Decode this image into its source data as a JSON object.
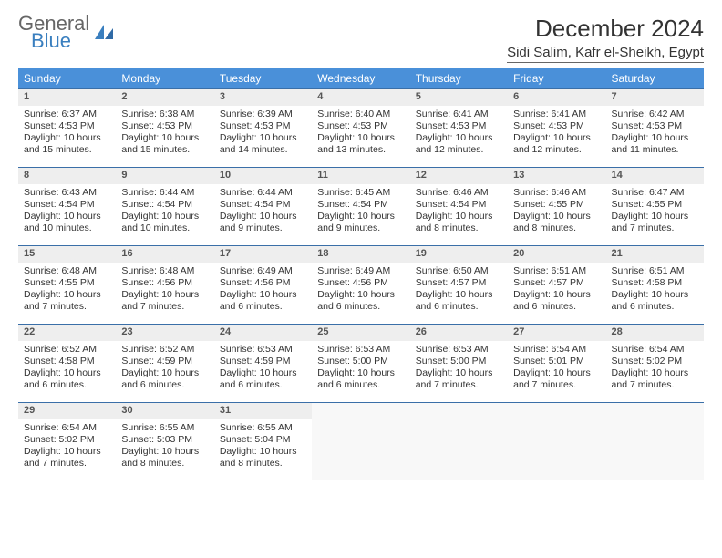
{
  "brand": {
    "line1": "General",
    "line2": "Blue"
  },
  "title": "December 2024",
  "subtitle": "Sidi Salim, Kafr el-Sheikh, Egypt",
  "colors": {
    "header_bg": "#4a90d9",
    "header_fg": "#ffffff",
    "daynum_bg": "#eeeeee",
    "row_rule": "#3a6fa8",
    "logo_blue": "#3a7fbf",
    "body_text": "#333333"
  },
  "weekdays": [
    "Sunday",
    "Monday",
    "Tuesday",
    "Wednesday",
    "Thursday",
    "Friday",
    "Saturday"
  ],
  "days": [
    {
      "n": 1,
      "sunrise": "6:37 AM",
      "sunset": "4:53 PM",
      "daylight": "10 hours and 15 minutes."
    },
    {
      "n": 2,
      "sunrise": "6:38 AM",
      "sunset": "4:53 PM",
      "daylight": "10 hours and 15 minutes."
    },
    {
      "n": 3,
      "sunrise": "6:39 AM",
      "sunset": "4:53 PM",
      "daylight": "10 hours and 14 minutes."
    },
    {
      "n": 4,
      "sunrise": "6:40 AM",
      "sunset": "4:53 PM",
      "daylight": "10 hours and 13 minutes."
    },
    {
      "n": 5,
      "sunrise": "6:41 AM",
      "sunset": "4:53 PM",
      "daylight": "10 hours and 12 minutes."
    },
    {
      "n": 6,
      "sunrise": "6:41 AM",
      "sunset": "4:53 PM",
      "daylight": "10 hours and 12 minutes."
    },
    {
      "n": 7,
      "sunrise": "6:42 AM",
      "sunset": "4:53 PM",
      "daylight": "10 hours and 11 minutes."
    },
    {
      "n": 8,
      "sunrise": "6:43 AM",
      "sunset": "4:54 PM",
      "daylight": "10 hours and 10 minutes."
    },
    {
      "n": 9,
      "sunrise": "6:44 AM",
      "sunset": "4:54 PM",
      "daylight": "10 hours and 10 minutes."
    },
    {
      "n": 10,
      "sunrise": "6:44 AM",
      "sunset": "4:54 PM",
      "daylight": "10 hours and 9 minutes."
    },
    {
      "n": 11,
      "sunrise": "6:45 AM",
      "sunset": "4:54 PM",
      "daylight": "10 hours and 9 minutes."
    },
    {
      "n": 12,
      "sunrise": "6:46 AM",
      "sunset": "4:54 PM",
      "daylight": "10 hours and 8 minutes."
    },
    {
      "n": 13,
      "sunrise": "6:46 AM",
      "sunset": "4:55 PM",
      "daylight": "10 hours and 8 minutes."
    },
    {
      "n": 14,
      "sunrise": "6:47 AM",
      "sunset": "4:55 PM",
      "daylight": "10 hours and 7 minutes."
    },
    {
      "n": 15,
      "sunrise": "6:48 AM",
      "sunset": "4:55 PM",
      "daylight": "10 hours and 7 minutes."
    },
    {
      "n": 16,
      "sunrise": "6:48 AM",
      "sunset": "4:56 PM",
      "daylight": "10 hours and 7 minutes."
    },
    {
      "n": 17,
      "sunrise": "6:49 AM",
      "sunset": "4:56 PM",
      "daylight": "10 hours and 6 minutes."
    },
    {
      "n": 18,
      "sunrise": "6:49 AM",
      "sunset": "4:56 PM",
      "daylight": "10 hours and 6 minutes."
    },
    {
      "n": 19,
      "sunrise": "6:50 AM",
      "sunset": "4:57 PM",
      "daylight": "10 hours and 6 minutes."
    },
    {
      "n": 20,
      "sunrise": "6:51 AM",
      "sunset": "4:57 PM",
      "daylight": "10 hours and 6 minutes."
    },
    {
      "n": 21,
      "sunrise": "6:51 AM",
      "sunset": "4:58 PM",
      "daylight": "10 hours and 6 minutes."
    },
    {
      "n": 22,
      "sunrise": "6:52 AM",
      "sunset": "4:58 PM",
      "daylight": "10 hours and 6 minutes."
    },
    {
      "n": 23,
      "sunrise": "6:52 AM",
      "sunset": "4:59 PM",
      "daylight": "10 hours and 6 minutes."
    },
    {
      "n": 24,
      "sunrise": "6:53 AM",
      "sunset": "4:59 PM",
      "daylight": "10 hours and 6 minutes."
    },
    {
      "n": 25,
      "sunrise": "6:53 AM",
      "sunset": "5:00 PM",
      "daylight": "10 hours and 6 minutes."
    },
    {
      "n": 26,
      "sunrise": "6:53 AM",
      "sunset": "5:00 PM",
      "daylight": "10 hours and 7 minutes."
    },
    {
      "n": 27,
      "sunrise": "6:54 AM",
      "sunset": "5:01 PM",
      "daylight": "10 hours and 7 minutes."
    },
    {
      "n": 28,
      "sunrise": "6:54 AM",
      "sunset": "5:02 PM",
      "daylight": "10 hours and 7 minutes."
    },
    {
      "n": 29,
      "sunrise": "6:54 AM",
      "sunset": "5:02 PM",
      "daylight": "10 hours and 7 minutes."
    },
    {
      "n": 30,
      "sunrise": "6:55 AM",
      "sunset": "5:03 PM",
      "daylight": "10 hours and 8 minutes."
    },
    {
      "n": 31,
      "sunrise": "6:55 AM",
      "sunset": "5:04 PM",
      "daylight": "10 hours and 8 minutes."
    }
  ],
  "labels": {
    "sunrise_prefix": "Sunrise: ",
    "sunset_prefix": "Sunset: ",
    "daylight_prefix": "Daylight: "
  },
  "first_weekday_index": 0,
  "trailing_empty": 4
}
